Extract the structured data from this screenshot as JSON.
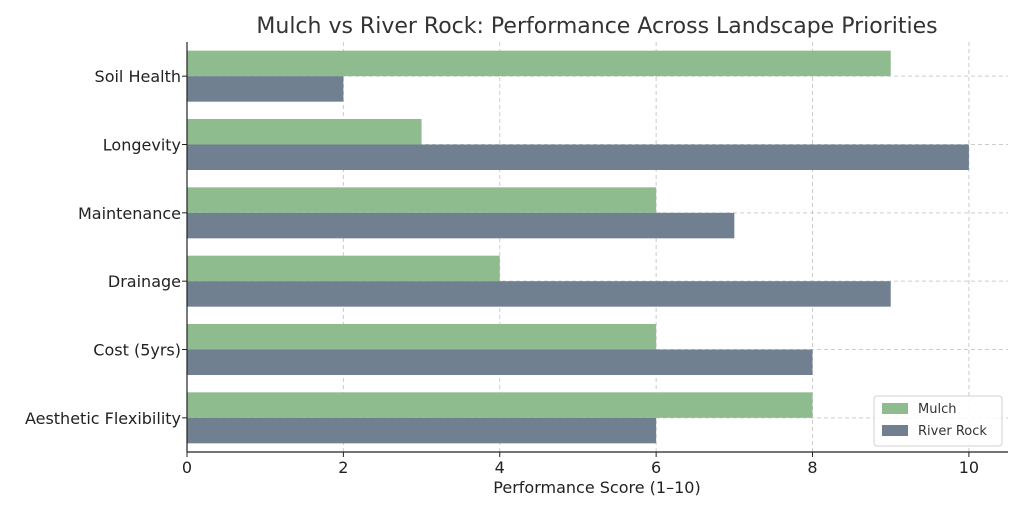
{
  "chart_data": {
    "type": "bar",
    "orientation": "horizontal",
    "title": "Mulch vs River Rock: Performance Across Landscape Priorities",
    "xlabel": "Performance Score (1–10)",
    "ylabel": "",
    "xlim": [
      0,
      10.5
    ],
    "xticks": [
      "0",
      "2",
      "4",
      "6",
      "8",
      "10"
    ],
    "categories": [
      "Soil Health",
      "Longevity",
      "Maintenance",
      "Drainage",
      "Cost (5yrs)",
      "Aesthetic Flexibility"
    ],
    "series": [
      {
        "name": "Mulch",
        "color": "#8fbc8f",
        "values": [
          9,
          3,
          6,
          4,
          6,
          8
        ]
      },
      {
        "name": "River Rock",
        "color": "#708090",
        "values": [
          2,
          10,
          7,
          9,
          8,
          6
        ]
      }
    ],
    "grid": true,
    "legend_position": "bottom-right"
  }
}
